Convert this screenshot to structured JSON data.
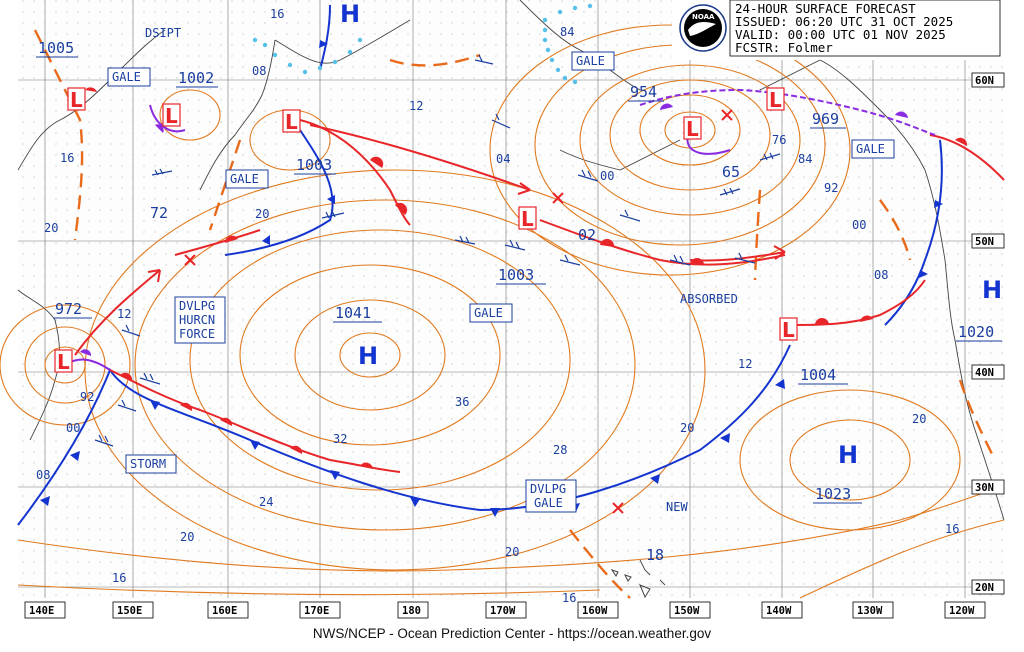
{
  "header": {
    "line1": "24-HOUR SURFACE FORECAST",
    "line2": "ISSUED: 06:20 UTC 31 OCT 2025",
    "line3": "VALID:  00:00 UTC 01 NOV 2025",
    "line4": "FCSTR:  Folmer",
    "logo_text": "NOAA"
  },
  "footer": "NWS/NCEP - Ocean Prediction Center - https://ocean.weather.gov",
  "lon_ticks": [
    "140E",
    "150E",
    "160E",
    "170E",
    "180",
    "170W",
    "160W",
    "150W",
    "140W",
    "130W",
    "120W"
  ],
  "lat_ticks": [
    "60N",
    "50N",
    "40N",
    "30N",
    "20N"
  ],
  "pressure_centers": [
    {
      "type": "L",
      "value": "1005"
    },
    {
      "type": "L",
      "value": "1002"
    },
    {
      "type": "L",
      "value": "1003"
    },
    {
      "type": "L",
      "value": "954"
    },
    {
      "type": "L",
      "value": "969"
    },
    {
      "type": "L",
      "value": "1003"
    },
    {
      "type": "L",
      "value": "972"
    },
    {
      "type": "L",
      "value": "1004"
    },
    {
      "type": "H",
      "value": "1041"
    },
    {
      "type": "H",
      "value": "1020"
    },
    {
      "type": "H",
      "value": "1023"
    }
  ],
  "warnings": [
    "GALE",
    "GALE",
    "GALE",
    "GALE",
    "GALE",
    "STORM"
  ],
  "dvlpg_hurcn": [
    "DVLPG",
    "HURCN",
    "FORCE"
  ],
  "dvlpg_gale": [
    "DVLPG",
    "GALE"
  ],
  "annotations": [
    "DSIPT",
    "ABSORBED",
    "NEW"
  ],
  "isobar_labels": [
    "16",
    "16",
    "20",
    "20",
    "20",
    "20",
    "20",
    "20",
    "16",
    "16",
    "16",
    "12",
    "12",
    "12",
    "08",
    "08",
    "08",
    "04",
    "02",
    "00",
    "00",
    "00",
    "92",
    "92",
    "84",
    "84",
    "76",
    "72",
    "65",
    "36",
    "32",
    "28",
    "24",
    "18"
  ],
  "hl_letters": {
    "high": "H",
    "low": "L"
  },
  "colors": {
    "isobar": "#e07a1f",
    "cold_front": "#1434d0",
    "warm_front": "#e8262a",
    "occluded_front": "#8a2be2",
    "text": "#1a3fa0",
    "ice": "#55c0e8"
  }
}
